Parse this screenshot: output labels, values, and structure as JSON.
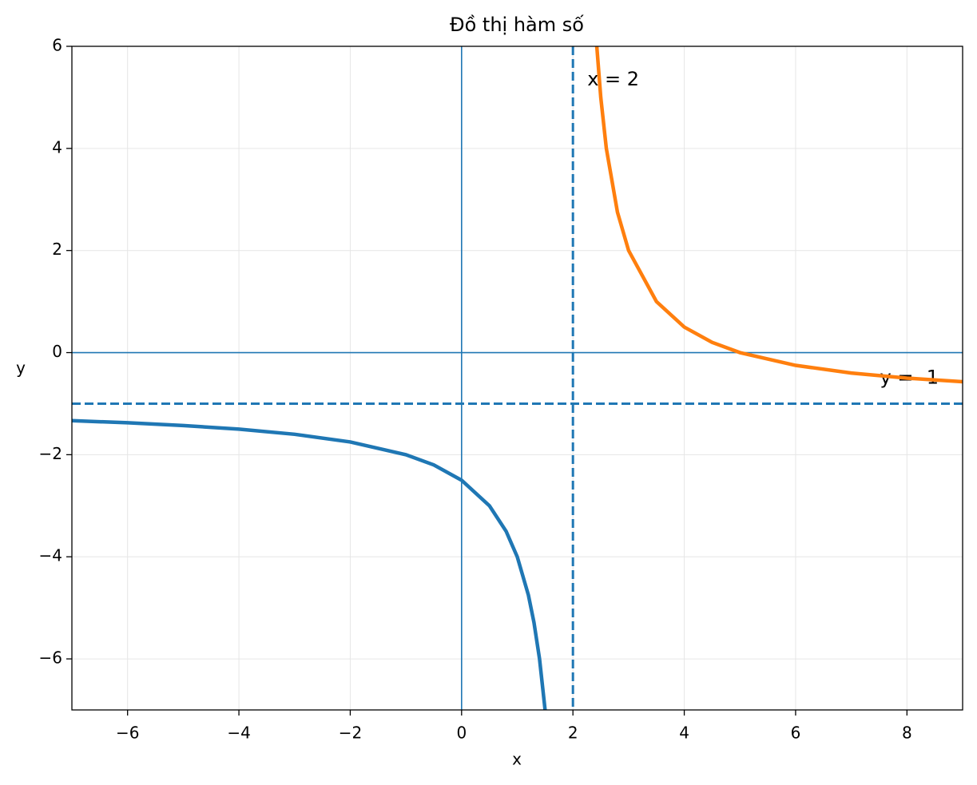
{
  "chart_data": {
    "type": "line",
    "title": "Đồ thị hàm số",
    "xlabel": "x",
    "ylabel": "y",
    "xlim": [
      -7,
      9
    ],
    "ylim": [
      -7,
      6
    ],
    "xticks": [
      {
        "value": -6,
        "label": "−6"
      },
      {
        "value": -4,
        "label": "−4"
      },
      {
        "value": -2,
        "label": "−2"
      },
      0,
      2,
      4,
      6,
      8
    ],
    "yticks": [
      {
        "value": -6,
        "label": "−6"
      },
      {
        "value": -4,
        "label": "−4"
      },
      {
        "value": -2,
        "label": "−2"
      },
      0,
      2,
      4,
      6
    ],
    "grid": true,
    "series": [
      {
        "color": "#1f77b4",
        "x": [
          -7,
          -6,
          -5,
          -4,
          -3,
          -2,
          -1,
          -0.5,
          0,
          0.5,
          0.8,
          1,
          1.2,
          1.3,
          1.4,
          1.5
        ],
        "values": [
          -1.333,
          -1.375,
          -1.429,
          -1.5,
          -1.6,
          -1.75,
          -2,
          -2.2,
          -2.5,
          -3,
          -3.5,
          -4,
          -4.75,
          -5.286,
          -6,
          -7
        ]
      },
      {
        "color": "#ff7f0e",
        "x": [
          2.4286,
          2.5,
          2.6,
          2.8,
          3,
          3.5,
          4,
          4.5,
          5,
          6,
          7,
          8,
          9
        ],
        "values": [
          6,
          5,
          4,
          2.75,
          2,
          1,
          0.5,
          0.2,
          0,
          -0.25,
          -0.4,
          -0.5,
          -0.571
        ]
      }
    ],
    "vlines": [
      {
        "value": 0,
        "style": "solid",
        "color": "#1f77b4"
      },
      {
        "value": 2,
        "style": "dashed",
        "color": "#1f77b4",
        "label": "x = 2"
      }
    ],
    "hlines": [
      {
        "value": 0,
        "style": "solid",
        "color": "#1f77b4"
      },
      {
        "value": -1,
        "style": "dashed",
        "color": "#1f77b4",
        "label": "y = -1"
      }
    ]
  }
}
